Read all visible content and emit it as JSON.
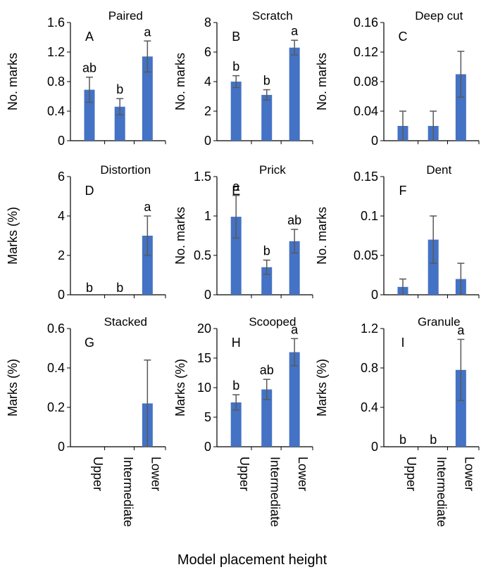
{
  "figure": {
    "shared_xlabel": "Model placement height",
    "categories": [
      "Upper",
      "Intermediate",
      "Lower"
    ],
    "bar_color": "#4472C4",
    "error_color": "#595959",
    "axis_color": "#000000"
  },
  "chart_data": [
    {
      "id": "paired",
      "type": "bar",
      "title": "Paired",
      "panel": "A",
      "ylabel": "No. marks",
      "ylim": [
        0,
        1.6
      ],
      "ticks": [
        "0",
        "0.4",
        "0.8",
        "1.2",
        "1.6"
      ],
      "categories": [
        "Upper",
        "Intermediate",
        "Lower"
      ],
      "values": [
        0.69,
        0.46,
        1.14
      ],
      "errors": [
        0.17,
        0.11,
        0.21
      ],
      "letters": [
        "ab",
        "b",
        "a"
      ],
      "show_xticks": false
    },
    {
      "id": "scratch",
      "type": "bar",
      "title": "Scratch",
      "panel": "B",
      "ylabel": "No. marks",
      "ylim": [
        0,
        8
      ],
      "ticks": [
        "0",
        "2",
        "4",
        "6",
        "8"
      ],
      "categories": [
        "Upper",
        "Intermediate",
        "Lower"
      ],
      "values": [
        4.0,
        3.1,
        6.3
      ],
      "errors": [
        0.4,
        0.35,
        0.5
      ],
      "letters": [
        "b",
        "b",
        "a"
      ],
      "show_xticks": false
    },
    {
      "id": "deepcut",
      "type": "bar",
      "title": "Deep cut",
      "panel": "C",
      "ylabel": "No. marks",
      "ylim": [
        0,
        0.16
      ],
      "ticks": [
        "0",
        "0.04",
        "0.08",
        "0.12",
        "0.16"
      ],
      "categories": [
        "Upper",
        "Intermediate",
        "Lower"
      ],
      "values": [
        0.02,
        0.02,
        0.09
      ],
      "errors": [
        0.02,
        0.02,
        0.031
      ],
      "letters": [
        "",
        "",
        ""
      ],
      "show_xticks": false
    },
    {
      "id": "distortion",
      "type": "bar",
      "title": "Distortion",
      "panel": "D",
      "ylabel": "Marks (%)",
      "ylim": [
        0,
        6
      ],
      "ticks": [
        "0",
        "2",
        "4",
        "6"
      ],
      "categories": [
        "Upper",
        "Intermediate",
        "Lower"
      ],
      "values": [
        0,
        0,
        3.0
      ],
      "errors": [
        0,
        0,
        1.0
      ],
      "letters": [
        "b",
        "b",
        "a"
      ],
      "show_xticks": false
    },
    {
      "id": "prick",
      "type": "bar",
      "title": "Prick",
      "panel": "E",
      "ylabel": "No. marks",
      "ylim": [
        0,
        1.5
      ],
      "ticks": [
        "0",
        "0.5",
        "1",
        "1.5"
      ],
      "categories": [
        "Upper",
        "Intermediate",
        "Lower"
      ],
      "values": [
        0.99,
        0.35,
        0.68
      ],
      "errors": [
        0.27,
        0.09,
        0.15
      ],
      "letters": [
        "a",
        "b",
        "ab"
      ],
      "show_xticks": false
    },
    {
      "id": "dent",
      "type": "bar",
      "title": "Dent",
      "panel": "F",
      "ylabel": "No. marks",
      "ylim": [
        0,
        0.15
      ],
      "ticks": [
        "0",
        "0.05",
        "0.1",
        "0.15"
      ],
      "categories": [
        "Upper",
        "Intermediate",
        "Lower"
      ],
      "values": [
        0.01,
        0.07,
        0.02
      ],
      "errors": [
        0.01,
        0.03,
        0.02
      ],
      "letters": [
        "",
        "",
        ""
      ],
      "show_xticks": false
    },
    {
      "id": "stacked",
      "type": "bar",
      "title": "Stacked",
      "panel": "G",
      "ylabel": "Marks (%)",
      "ylim": [
        0,
        0.6
      ],
      "ticks": [
        "0",
        "0.2",
        "0.4",
        "0.6"
      ],
      "categories": [
        "Upper",
        "Intermediate",
        "Lower"
      ],
      "values": [
        0,
        0,
        0.22
      ],
      "errors": [
        0,
        0,
        0.22
      ],
      "letters": [
        "",
        "",
        ""
      ],
      "show_xticks": true
    },
    {
      "id": "scooped",
      "type": "bar",
      "title": "Scooped",
      "panel": "H",
      "ylabel": "Marks (%)",
      "ylim": [
        0,
        20
      ],
      "ticks": [
        "0",
        "5",
        "10",
        "15",
        "20"
      ],
      "categories": [
        "Upper",
        "Intermediate",
        "Lower"
      ],
      "values": [
        7.5,
        9.7,
        16.0
      ],
      "errors": [
        1.3,
        1.7,
        2.3
      ],
      "letters": [
        "b",
        "ab",
        "a"
      ],
      "show_xticks": true
    },
    {
      "id": "granule",
      "type": "bar",
      "title": "Granule",
      "panel": "I",
      "ylabel": "Marks (%)",
      "ylim": [
        0,
        1.2
      ],
      "ticks": [
        "0",
        "0.4",
        "0.8",
        "1.2"
      ],
      "categories": [
        "Upper",
        "Intermediate",
        "Lower"
      ],
      "values": [
        0,
        0,
        0.78
      ],
      "errors": [
        0,
        0,
        0.31
      ],
      "letters": [
        "b",
        "b",
        "a"
      ],
      "show_xticks": true
    }
  ]
}
